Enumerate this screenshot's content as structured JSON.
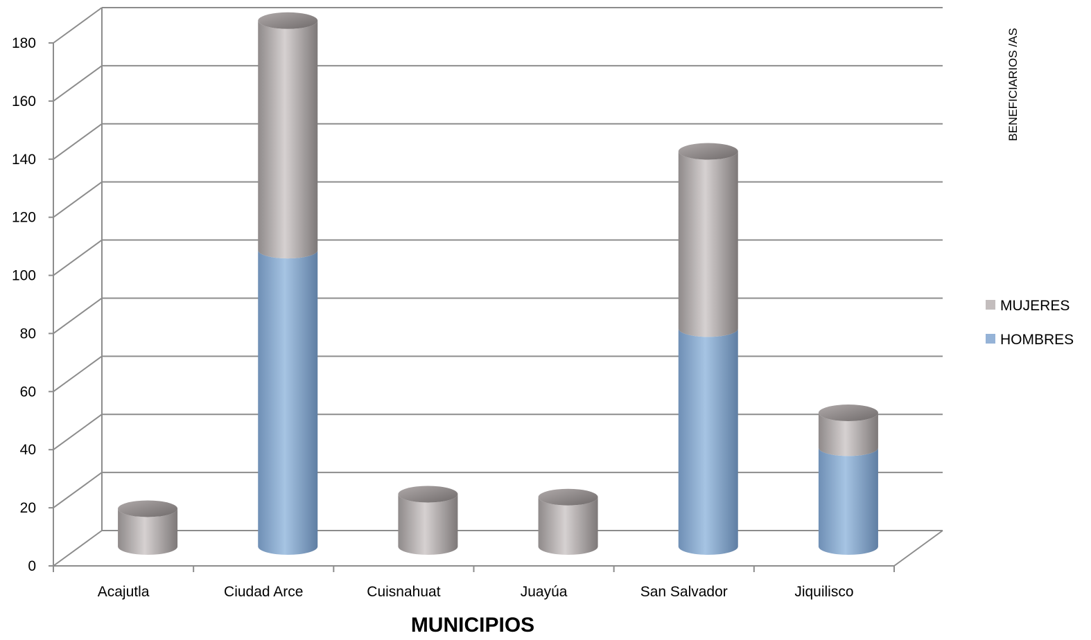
{
  "chart_data": {
    "type": "bar",
    "stacked": true,
    "style": "3d-cylinder",
    "categories": [
      "Acajutla",
      "Ciudad Arce",
      "Cuisnahuat",
      "Juayúa",
      "San Salvador",
      "Jiquilisco"
    ],
    "series": [
      {
        "name": "HOMBRES",
        "values": [
          0,
          102,
          0,
          0,
          75,
          34
        ],
        "color": "#95b3d7"
      },
      {
        "name": "MUJERES",
        "values": [
          13,
          79,
          18,
          17,
          61,
          12
        ],
        "color": "#c3bdbd"
      }
    ],
    "title": "",
    "xlabel": "MUNICIPIOS",
    "ylabel": "BENEFICIARIOS /AS",
    "ylim": [
      0,
      180
    ],
    "yticks": [
      0,
      20,
      40,
      60,
      80,
      100,
      120,
      140,
      160,
      180
    ],
    "grid": true,
    "legend_position": "right"
  }
}
